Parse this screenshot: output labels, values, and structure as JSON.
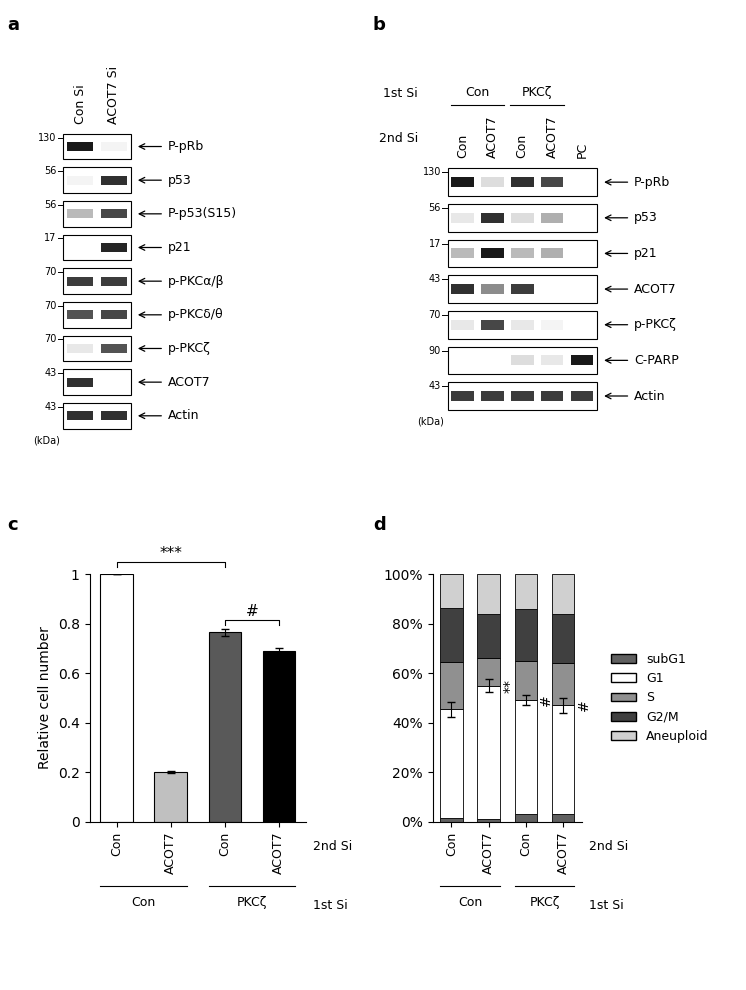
{
  "blots": [
    {
      "panel": "a",
      "lanes": [
        "Con Si",
        "ACOT7 Si"
      ],
      "unit": "(kDa)",
      "rows": [
        {
          "marker": 130,
          "label": "P-pRb",
          "intensity": [
            1.0,
            0.05
          ]
        },
        {
          "marker": 56,
          "label": "p53",
          "intensity": [
            0.05,
            0.9
          ]
        },
        {
          "marker": 56,
          "label": "P-p53(S15)",
          "intensity": [
            0.3,
            0.8
          ]
        },
        {
          "marker": 17,
          "label": "p21",
          "intensity": [
            0.0,
            0.95
          ]
        },
        {
          "marker": 70,
          "label": "p-PKCα/β",
          "intensity": [
            0.85,
            0.85
          ]
        },
        {
          "marker": 70,
          "label": "p-PKCδ/θ",
          "intensity": [
            0.75,
            0.8
          ]
        },
        {
          "marker": 70,
          "label": "p-PKCζ",
          "intensity": [
            0.1,
            0.75
          ]
        },
        {
          "marker": 43,
          "label": "ACOT7",
          "intensity": [
            0.9,
            0.0
          ]
        },
        {
          "marker": 43,
          "label": "Actin",
          "intensity": [
            0.9,
            0.9
          ]
        }
      ]
    },
    {
      "panel": "b",
      "group_title": "1st Si",
      "lane_title": "2nd Si",
      "groups": [
        {
          "label": "Con",
          "span": [
            0,
            1
          ]
        },
        {
          "label": "PKCζ",
          "span": [
            2,
            3
          ]
        }
      ],
      "lanes": [
        "Con",
        "ACOT7",
        "Con",
        "ACOT7",
        "PC"
      ],
      "unit": "(kDa)",
      "rows": [
        {
          "marker": 130,
          "label": "P-pRb",
          "intensity": [
            1.0,
            0.15,
            0.9,
            0.8,
            0.0
          ]
        },
        {
          "marker": 56,
          "label": "p53",
          "intensity": [
            0.1,
            0.9,
            0.15,
            0.35,
            0.0
          ]
        },
        {
          "marker": 17,
          "label": "p21",
          "intensity": [
            0.3,
            1.0,
            0.3,
            0.35,
            0.0
          ]
        },
        {
          "marker": 43,
          "label": "ACOT7",
          "intensity": [
            0.9,
            0.5,
            0.85,
            0.0,
            0.0
          ]
        },
        {
          "marker": 70,
          "label": "p-PKCζ",
          "intensity": [
            0.1,
            0.8,
            0.1,
            0.05,
            0.0
          ]
        },
        {
          "marker": 90,
          "label": "C-PARP",
          "intensity": [
            0.0,
            0.0,
            0.15,
            0.1,
            1.0
          ]
        },
        {
          "marker": 43,
          "label": "Actin",
          "intensity": [
            0.85,
            0.85,
            0.85,
            0.85,
            0.85
          ]
        }
      ]
    }
  ],
  "chart_data": [
    {
      "panel": "c",
      "type": "bar",
      "y_label": "Relative cell number",
      "categories": [
        "Con",
        "ACOT7",
        "Con",
        "ACOT7"
      ],
      "category_title": "2nd Si",
      "groups": [
        {
          "label": "Con",
          "span": [
            0,
            1
          ]
        },
        {
          "label": "PKCζ",
          "span": [
            2,
            3
          ]
        }
      ],
      "group_title": "1st Si",
      "values": [
        1.0,
        0.2,
        0.765,
        0.69
      ],
      "errors": [
        0.0,
        0.005,
        0.015,
        0.01
      ],
      "colors": [
        "#ffffff",
        "#c0c0c0",
        "#595959",
        "#000000"
      ],
      "ylim": [
        0,
        1
      ],
      "yticks": [
        0,
        0.2,
        0.4,
        0.6,
        0.8,
        1
      ],
      "annotations": [
        {
          "text": "***",
          "from": 0,
          "to": 2
        },
        {
          "text": "#",
          "from": 2,
          "to": 3
        }
      ]
    },
    {
      "panel": "d",
      "type": "bar",
      "stacked": true,
      "legend": "center left",
      "categories": [
        "Con",
        "ACOT7",
        "Con",
        "ACOT7"
      ],
      "category_title": "2nd Si",
      "groups": [
        {
          "label": "Con",
          "span": [
            0,
            1
          ]
        },
        {
          "label": "PKCζ",
          "span": [
            2,
            3
          ]
        }
      ],
      "group_title": "1st Si",
      "series": [
        {
          "name": "subG1",
          "color": "#606060",
          "values": [
            1.5,
            1,
            3,
            3
          ]
        },
        {
          "name": "G1",
          "color": "#ffffff",
          "values": [
            44,
            54,
            46,
            44
          ],
          "errors": [
            3,
            2.5,
            2,
            3
          ]
        },
        {
          "name": "S",
          "color": "#909090",
          "values": [
            19,
            11,
            16,
            17
          ]
        },
        {
          "name": "G2/M",
          "color": "#404040",
          "values": [
            22,
            18,
            21,
            20
          ]
        },
        {
          "name": "Aneuploid",
          "color": "#d0d0d0",
          "values": [
            13.5,
            16,
            14,
            16
          ]
        }
      ],
      "ylim": [
        0,
        100
      ],
      "yticks": [
        {
          "value": 0,
          "label": "0%"
        },
        {
          "value": 20,
          "label": "20%"
        },
        {
          "value": 40,
          "label": "40%"
        },
        {
          "value": 60,
          "label": "60%"
        },
        {
          "value": 80,
          "label": "80%"
        },
        {
          "value": 100,
          "label": "100%"
        }
      ],
      "annotations": [
        {
          "text": "**",
          "category": 1
        },
        {
          "text": "#",
          "category": 2
        },
        {
          "text": "#",
          "category": 3
        }
      ]
    }
  ]
}
